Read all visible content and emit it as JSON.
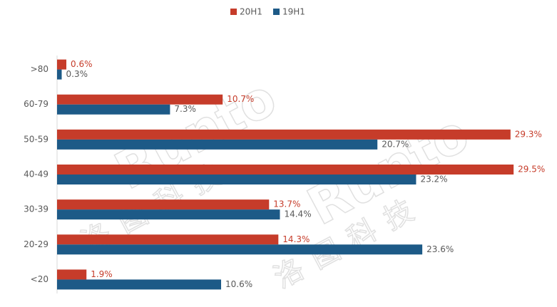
{
  "chart_data": {
    "type": "hbar",
    "categories": [
      ">80",
      "60-79",
      "50-59",
      "40-49",
      "30-39",
      "20-29",
      "<20"
    ],
    "series": [
      {
        "name": "20H1",
        "color": "#c63c2a",
        "values": [
          0.6,
          10.7,
          29.3,
          29.5,
          13.7,
          14.3,
          1.9
        ],
        "value_labels": [
          "0.6%",
          "10.7%",
          "29.3%",
          "29.5%",
          "13.7%",
          "14.3%",
          "1.9%"
        ],
        "label_color": "#c63c2a"
      },
      {
        "name": "19H1",
        "color": "#1d5a87",
        "values": [
          0.3,
          7.3,
          20.7,
          23.2,
          14.4,
          23.6,
          10.6
        ],
        "value_labels": [
          "0.3%",
          "7.3%",
          "20.7%",
          "23.2%",
          "14.4%",
          "23.6%",
          "10.6%"
        ],
        "label_color": "#595959"
      }
    ],
    "xlim": [
      0,
      30
    ],
    "legend": "top",
    "watermark": {
      "brand": "Runto",
      "name": "洛图科技"
    }
  }
}
